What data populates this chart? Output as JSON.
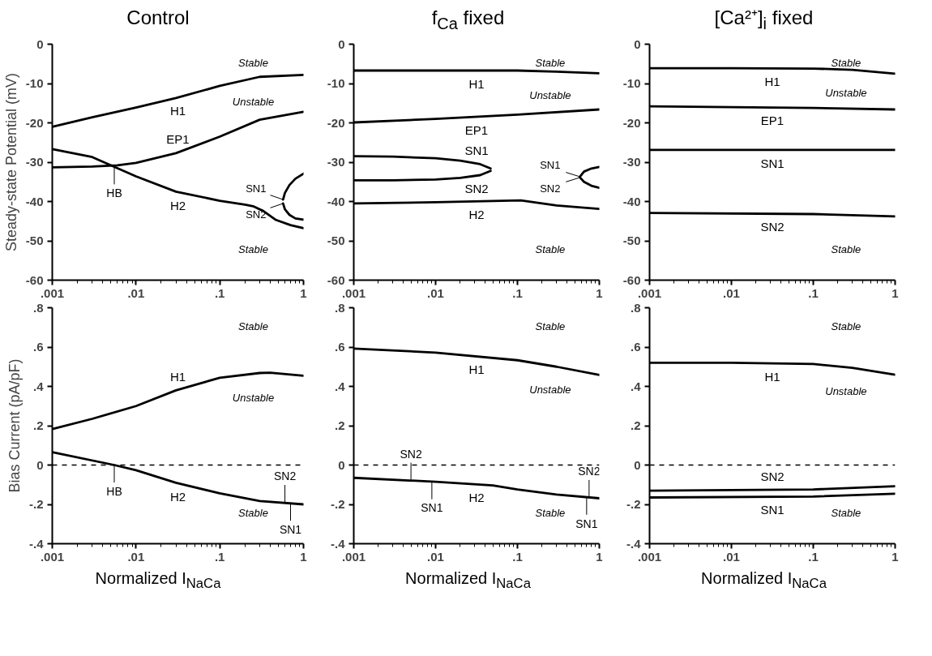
{
  "chart_data": [
    {
      "type": "line",
      "title": "Control",
      "ylabel": "Steady-state Potential (mV)",
      "log": "x",
      "xlim": [
        0.001,
        1
      ],
      "ylim": [
        -60,
        0
      ],
      "xticks": [
        {
          "value": 0.001,
          "label": ".001"
        },
        {
          "value": 0.01,
          "label": ".01"
        },
        {
          "value": 0.1,
          "label": ".1"
        },
        1
      ],
      "yticks": [
        -60,
        -50,
        -40,
        -30,
        -20,
        -10,
        0
      ],
      "series": [
        {
          "name": "H1",
          "color": "#000000",
          "x": [
            0.001,
            0.003,
            0.01,
            0.03,
            0.1,
            0.3,
            1
          ],
          "values": [
            -21,
            -18.6,
            -16.1,
            -13.7,
            -10.6,
            -8.3,
            -7.8
          ]
        },
        {
          "name": "EP1",
          "color": "#000000",
          "x": [
            0.001,
            0.003,
            0.006,
            0.01,
            0.03,
            0.1,
            0.3,
            1
          ],
          "values": [
            -31.3,
            -31.1,
            -30.8,
            -30.2,
            -27.7,
            -23.5,
            -19.2,
            -17.2
          ]
        },
        {
          "name": "H2",
          "color": "#000000",
          "x": [
            0.001,
            0.003,
            0.01,
            0.03,
            0.1,
            0.2,
            0.25,
            0.33,
            0.47,
            0.7,
            1
          ],
          "values": [
            -26.7,
            -28.7,
            -33.6,
            -37.5,
            -39.8,
            -40.8,
            -41.2,
            -42.4,
            -44.7,
            -46,
            -46.8
          ]
        },
        {
          "name": "SN1",
          "color": "#000000",
          "x": [
            1,
            0.8,
            0.68,
            0.6,
            0.57
          ],
          "values": [
            -32.9,
            -34.2,
            -35.8,
            -37.8,
            -39.5
          ]
        },
        {
          "name": "SN2",
          "color": "#000000",
          "x": [
            0.57,
            0.6,
            0.68,
            0.8,
            1
          ],
          "values": [
            -40.5,
            -42,
            -43.4,
            -44.3,
            -44.6
          ]
        }
      ],
      "annotations": [
        "Stable",
        "Unstable",
        "Stable",
        {
          "text": "HB",
          "x": 0.0055,
          "y": -31.2
        }
      ]
    },
    {
      "type": "line",
      "title": "f$_{Ca}$ fixed",
      "log": "x",
      "xlim": [
        0.001,
        1
      ],
      "ylim": [
        -60,
        0
      ],
      "xticks": [
        {
          "value": 0.001,
          "label": ".001"
        },
        {
          "value": 0.01,
          "label": ".01"
        },
        {
          "value": 0.1,
          "label": ".1"
        },
        1
      ],
      "yticks": [
        -60,
        -50,
        -40,
        -30,
        -20,
        -10,
        0
      ],
      "series": [
        {
          "name": "H1",
          "color": "#000000",
          "x": [
            0.001,
            0.01,
            0.1,
            0.3,
            1
          ],
          "values": [
            -6.7,
            -6.7,
            -6.7,
            -7,
            -7.4
          ]
        },
        {
          "name": "EP1",
          "color": "#000000",
          "x": [
            0.001,
            0.01,
            0.1,
            1
          ],
          "values": [
            -19.9,
            -19,
            -17.9,
            -16.6
          ]
        },
        {
          "name": "SN1",
          "color": "#000000",
          "x": [
            0.001,
            0.003,
            0.01,
            0.02,
            0.035,
            0.047
          ],
          "values": [
            -28.5,
            -28.6,
            -29,
            -29.6,
            -30.5,
            -31.6
          ]
        },
        {
          "name": "SN2",
          "color": "#000000",
          "x": [
            0.047,
            0.035,
            0.02,
            0.01,
            0.003,
            0.001
          ],
          "values": [
            -32.2,
            -33.3,
            -34,
            -34.4,
            -34.6,
            -34.6
          ]
        },
        {
          "name": "SN1",
          "color": "#000000",
          "x": [
            1,
            0.8,
            0.65,
            0.58
          ],
          "values": [
            -31.2,
            -31.6,
            -32.4,
            -33.7
          ]
        },
        {
          "name": "SN2",
          "color": "#000000",
          "x": [
            0.58,
            0.65,
            0.8,
            1
          ],
          "values": [
            -33.9,
            -35,
            -36,
            -36.5
          ]
        },
        {
          "name": "H2",
          "color": "#000000",
          "x": [
            0.001,
            0.01,
            0.11,
            0.3,
            1
          ],
          "values": [
            -40.5,
            -40.2,
            -39.7,
            -41,
            -41.9
          ]
        }
      ],
      "annotations": [
        "Stable",
        "Unstable",
        "Stable"
      ]
    },
    {
      "type": "line",
      "title": "[Ca²⁺]$_{i}$ fixed",
      "log": "x",
      "xlim": [
        0.001,
        1
      ],
      "ylim": [
        -60,
        0
      ],
      "xticks": [
        {
          "value": 0.001,
          "label": ".001"
        },
        {
          "value": 0.01,
          "label": ".01"
        },
        {
          "value": 0.1,
          "label": ".1"
        },
        1
      ],
      "yticks": [
        -60,
        -50,
        -40,
        -30,
        -20,
        -10,
        0
      ],
      "series": [
        {
          "name": "H1",
          "color": "#000000",
          "x": [
            0.001,
            0.01,
            0.1,
            0.3,
            1
          ],
          "values": [
            -6.1,
            -6.1,
            -6.2,
            -6.5,
            -7.5
          ]
        },
        {
          "name": "EP1",
          "color": "#000000",
          "x": [
            0.001,
            0.1,
            1
          ],
          "values": [
            -15.8,
            -16.2,
            -16.6
          ]
        },
        {
          "name": "SN1",
          "color": "#000000",
          "x": [
            0.001,
            1
          ],
          "values": [
            -26.9,
            -26.9
          ]
        },
        {
          "name": "SN2",
          "color": "#000000",
          "x": [
            0.001,
            0.1,
            1
          ],
          "values": [
            -42.9,
            -43.2,
            -43.8
          ]
        }
      ],
      "annotations": [
        "Stable",
        "Unstable",
        "Stable"
      ]
    },
    {
      "type": "line",
      "xlabel": "Normalized I$_{NaCa}$",
      "ylabel": "Bias Current (pA/pF)",
      "log": "x",
      "xlim": [
        0.001,
        1
      ],
      "ylim": [
        -0.4,
        0.8
      ],
      "xticks": [
        {
          "value": 0.001,
          "label": ".001"
        },
        {
          "value": 0.01,
          "label": ".01"
        },
        {
          "value": 0.1,
          "label": ".1"
        },
        1
      ],
      "yticks": [
        {
          "value": -0.4,
          "label": "-.4"
        },
        {
          "value": -0.2,
          "label": "-.2"
        },
        0,
        {
          "value": 0.2,
          "label": ".2"
        },
        {
          "value": 0.4,
          "label": ".4"
        },
        {
          "value": 0.6,
          "label": ".6"
        },
        {
          "value": 0.8,
          "label": ".8"
        }
      ],
      "ref_lines": [
        {
          "axis": "y",
          "value": 0,
          "color": "#000000",
          "line_style": "dashed"
        }
      ],
      "series": [
        {
          "name": "H1",
          "color": "#000000",
          "x": [
            0.001,
            0.003,
            0.01,
            0.03,
            0.1,
            0.3,
            0.4,
            1
          ],
          "values": [
            0.183,
            0.235,
            0.3,
            0.38,
            0.444,
            0.468,
            0.47,
            0.454
          ]
        },
        {
          "name": "H2",
          "color": "#000000",
          "x": [
            0.001,
            0.0055,
            0.01,
            0.03,
            0.1,
            0.3,
            1
          ],
          "values": [
            0.065,
            0,
            -0.026,
            -0.09,
            -0.144,
            -0.183,
            -0.2
          ]
        }
      ],
      "annotations": [
        "Stable",
        "Unstable",
        "Stable",
        {
          "text": "SN1",
          "x": 0.7,
          "y": -0.194
        },
        {
          "text": "SN2",
          "x": 0.6,
          "y": -0.19
        },
        {
          "text": "HB",
          "x": 0.0055,
          "y": 0
        }
      ]
    },
    {
      "type": "line",
      "xlabel": "Normalized I$_{NaCa}$",
      "log": "x",
      "xlim": [
        0.001,
        1
      ],
      "ylim": [
        -0.4,
        0.8
      ],
      "xticks": [
        {
          "value": 0.001,
          "label": ".001"
        },
        {
          "value": 0.01,
          "label": ".01"
        },
        {
          "value": 0.1,
          "label": ".1"
        },
        1
      ],
      "yticks": [
        {
          "value": -0.4,
          "label": "-.4"
        },
        {
          "value": -0.2,
          "label": "-.2"
        },
        0,
        {
          "value": 0.2,
          "label": ".2"
        },
        {
          "value": 0.4,
          "label": ".4"
        },
        {
          "value": 0.6,
          "label": ".6"
        },
        {
          "value": 0.8,
          "label": ".8"
        }
      ],
      "ref_lines": [
        {
          "axis": "y",
          "value": 0,
          "color": "#000000",
          "line_style": "dashed"
        }
      ],
      "series": [
        {
          "name": "H1",
          "color": "#000000",
          "x": [
            0.001,
            0.01,
            0.1,
            0.3,
            1
          ],
          "values": [
            0.592,
            0.572,
            0.533,
            0.5,
            0.458
          ]
        },
        {
          "name": "H2",
          "color": "#000000",
          "x": [
            0.001,
            0.01,
            0.05,
            0.1,
            0.3,
            1
          ],
          "values": [
            -0.065,
            -0.085,
            -0.104,
            -0.124,
            -0.15,
            -0.169
          ]
        }
      ],
      "annotations": [
        "Stable",
        "Unstable",
        "Stable",
        {
          "text": "SN1",
          "x": 0.009,
          "y": -0.085
        },
        {
          "text": "SN2",
          "x": 0.005,
          "y": -0.077
        },
        {
          "text": "SN1",
          "x": 0.7,
          "y": -0.164
        },
        {
          "text": "SN2",
          "x": 0.75,
          "y": -0.165
        }
      ]
    },
    {
      "type": "line",
      "xlabel": "Normalized I$_{NaCa}$",
      "log": "x",
      "xlim": [
        0.001,
        1
      ],
      "ylim": [
        -0.4,
        0.8
      ],
      "xticks": [
        {
          "value": 0.001,
          "label": ".001"
        },
        {
          "value": 0.01,
          "label": ".01"
        },
        {
          "value": 0.1,
          "label": ".1"
        },
        1
      ],
      "yticks": [
        {
          "value": -0.4,
          "label": "-.4"
        },
        {
          "value": -0.2,
          "label": "-.2"
        },
        0,
        {
          "value": 0.2,
          "label": ".2"
        },
        {
          "value": 0.4,
          "label": ".4"
        },
        {
          "value": 0.6,
          "label": ".6"
        },
        {
          "value": 0.8,
          "label": ".8"
        }
      ],
      "ref_lines": [
        {
          "axis": "y",
          "value": 0,
          "color": "#000000",
          "line_style": "dashed"
        }
      ],
      "series": [
        {
          "name": "H1",
          "color": "#000000",
          "x": [
            0.001,
            0.01,
            0.1,
            0.3,
            1
          ],
          "values": [
            0.52,
            0.52,
            0.514,
            0.494,
            0.459
          ]
        },
        {
          "name": "SN2",
          "color": "#000000",
          "x": [
            0.001,
            0.1,
            1
          ],
          "values": [
            -0.13,
            -0.124,
            -0.108
          ]
        },
        {
          "name": "SN1",
          "color": "#000000",
          "x": [
            0.001,
            0.1,
            1
          ],
          "values": [
            -0.165,
            -0.16,
            -0.146
          ]
        }
      ],
      "annotations": [
        "Stable",
        "Unstable",
        "Stable"
      ]
    }
  ]
}
